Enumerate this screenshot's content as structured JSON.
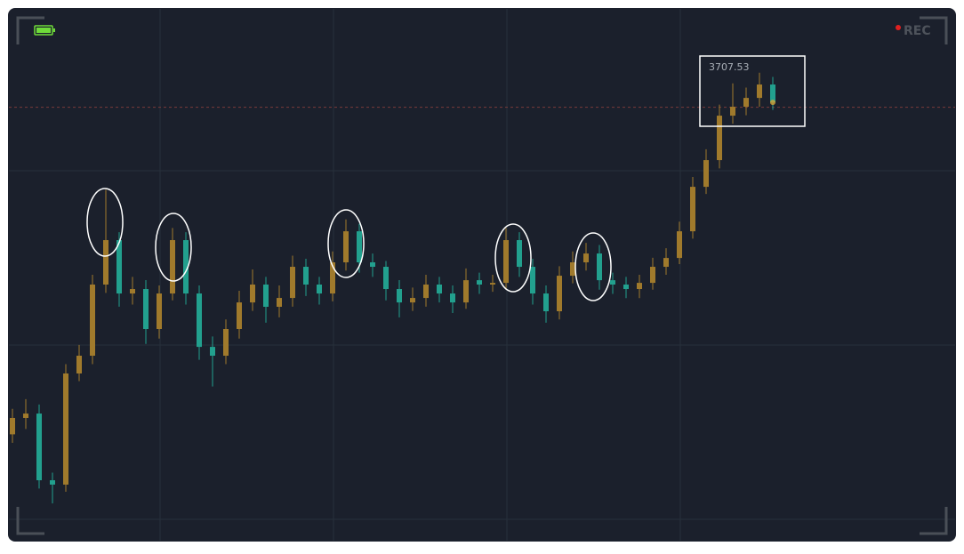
{
  "chart_data": {
    "type": "candlestick",
    "up_color": "#a07a2c",
    "down_color": "#22a08e",
    "ylim": [
      3300,
      3800
    ],
    "price_line": {
      "value": 3707.53
    },
    "rec_label": "REC",
    "open": [
      3400,
      3415.4,
      3419.5,
      3356.8,
      3352.7,
      3457.2,
      3473.9,
      3540.8,
      3582.6,
      3532.4,
      3536.6,
      3499.0,
      3532.4,
      3582.6,
      3532.4,
      3482.2,
      3473.9,
      3499.0,
      3524.0,
      3540.8,
      3519.9,
      3528.2,
      3557.5,
      3540.8,
      3532.4,
      3561.7,
      3590.9,
      3561.7,
      3557.5,
      3536.6,
      3524.0,
      3528.2,
      3540.8,
      3532.4,
      3524.0,
      3544.9,
      3540.8,
      3542.4,
      3582.6,
      3557.5,
      3532.4,
      3515.7,
      3549.1,
      3561.7,
      3570.0,
      3544.9,
      3540.8,
      3536.6,
      3542.4,
      3557.5,
      3565.8,
      3590.9,
      3632.7,
      3657.8,
      3699.6,
      3708.0,
      3716.3,
      3728.9
    ],
    "high": [
      3424,
      3433,
      3428,
      3364,
      3466,
      3484,
      3550,
      3630,
      3590,
      3548,
      3545,
      3540,
      3594,
      3590,
      3540,
      3492,
      3508,
      3535,
      3555,
      3548,
      3540,
      3568,
      3565,
      3548,
      3572,
      3602,
      3598,
      3570,
      3563,
      3545,
      3538,
      3550,
      3548,
      3540,
      3556,
      3552,
      3550,
      3594,
      3590,
      3565,
      3540,
      3558,
      3572,
      3580,
      3578,
      3552,
      3548,
      3550,
      3566,
      3575,
      3600,
      3642,
      3668,
      3710,
      3730,
      3726,
      3740,
      3736
    ],
    "low": [
      3392,
      3405,
      3349,
      3335,
      3346,
      3450,
      3466,
      3533,
      3520,
      3522,
      3485,
      3490,
      3526,
      3522,
      3470,
      3445,
      3466,
      3490,
      3516,
      3505,
      3510,
      3520,
      3530,
      3522,
      3525,
      3554,
      3552,
      3548,
      3526,
      3510,
      3516,
      3520,
      3524,
      3514,
      3518,
      3532,
      3534,
      3536,
      3548,
      3522,
      3505,
      3508,
      3542,
      3554,
      3536,
      3532,
      3528,
      3528,
      3536,
      3550,
      3560,
      3584,
      3626,
      3650,
      3692,
      3700,
      3708,
      3705
    ],
    "close": [
      3415.4,
      3419.5,
      3356.8,
      3352.7,
      3457.2,
      3473.9,
      3540.8,
      3582.6,
      3532.4,
      3536.6,
      3499.0,
      3532.4,
      3582.6,
      3532.4,
      3482.2,
      3473.9,
      3499.0,
      3524.0,
      3540.8,
      3519.9,
      3528.2,
      3557.5,
      3540.8,
      3532.4,
      3561.7,
      3590.9,
      3561.7,
      3557.5,
      3536.6,
      3524.0,
      3528.2,
      3540.8,
      3532.4,
      3524.0,
      3544.9,
      3540.8,
      3542.4,
      3582.6,
      3557.5,
      3532.4,
      3515.7,
      3549.1,
      3561.7,
      3570.0,
      3544.9,
      3540.8,
      3536.6,
      3542.4,
      3557.5,
      3565.8,
      3590.9,
      3632.7,
      3657.8,
      3699.6,
      3708.0,
      3716.3,
      3728.9,
      3712.1
    ]
  }
}
